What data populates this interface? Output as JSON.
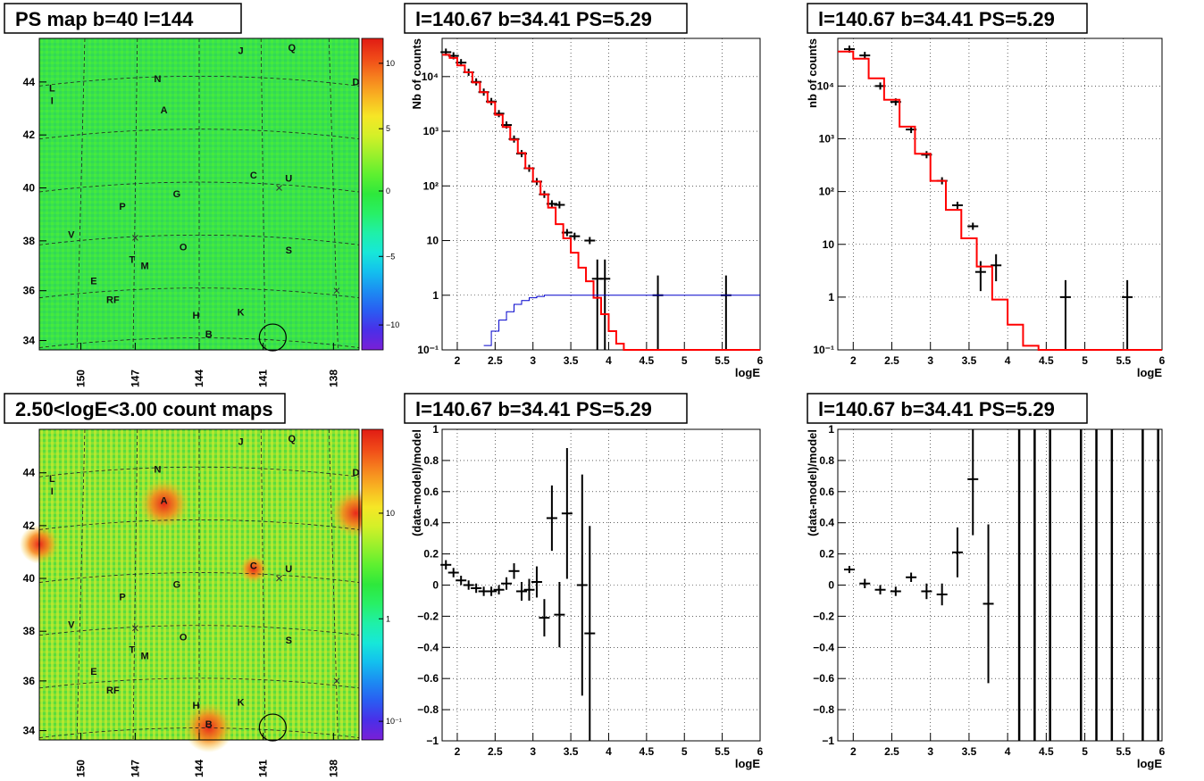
{
  "colors": {
    "data_marker": "#000000",
    "model_line": "#ff0000",
    "aux_line": "#0000cc",
    "grid": "#000000",
    "palette": [
      "#7a1fd6",
      "#4a2fe8",
      "#2a5cf2",
      "#1c8cf2",
      "#13bfee",
      "#17e8d8",
      "#1ff0a8",
      "#28f066",
      "#2ee83c",
      "#5ef030",
      "#9af02c",
      "#d4f028",
      "#f6e626",
      "#f8b422",
      "#f6801e",
      "#f04818",
      "#e01c14"
    ]
  },
  "maps": [
    {
      "title": "PS map b=40 l=144",
      "x_ticks": [
        "150",
        "147",
        "144",
        "141",
        "138"
      ],
      "y_ticks": [
        "44",
        "42",
        "40",
        "38",
        "36",
        "34"
      ],
      "palette_ticks": [
        "10",
        "5",
        "0",
        "−5",
        "−10"
      ],
      "background": "#3ae34a",
      "labels": [
        "J",
        "Q",
        "N",
        "D",
        "L",
        "I",
        "A",
        "C",
        "U",
        "G",
        "P",
        "V",
        "O",
        "S",
        "T",
        "M",
        "E",
        "RF",
        "H",
        "K",
        "B"
      ]
    },
    {
      "title": "2.50<logE<3.00 count maps",
      "x_ticks": [
        "150",
        "147",
        "144",
        "141",
        "138"
      ],
      "y_ticks": [
        "44",
        "42",
        "40",
        "38",
        "36",
        "34"
      ],
      "palette_ticks": [
        "10",
        "1",
        "10⁻¹"
      ],
      "background": "#7fe238",
      "labels": [
        "J",
        "Q",
        "N",
        "D",
        "L",
        "I",
        "A",
        "C",
        "U",
        "G",
        "P",
        "V",
        "O",
        "S",
        "T",
        "M",
        "E",
        "RF",
        "H",
        "K",
        "B"
      ]
    }
  ],
  "chart_data": [
    {
      "type": "line",
      "title": "l=140.67 b=34.41 PS=5.29",
      "xlabel": "logE",
      "ylabel": "Nb of counts",
      "xlim": [
        1.8,
        6
      ],
      "ylim": [
        0.1,
        50000
      ],
      "yscale": "log",
      "x_ticks": [
        "2",
        "2.5",
        "3",
        "3.5",
        "4",
        "4.5",
        "5",
        "5.5",
        "6"
      ],
      "y_ticks": [
        "10⁻¹",
        "1",
        "10",
        "10²",
        "10³",
        "10⁴"
      ],
      "grid": true,
      "series": [
        {
          "role": "data",
          "x": [
            1.85,
            1.95,
            2.05,
            2.15,
            2.25,
            2.35,
            2.45,
            2.55,
            2.65,
            2.75,
            2.85,
            2.95,
            3.05,
            3.15,
            3.25,
            3.35,
            3.45,
            3.55,
            3.75,
            3.85,
            3.95,
            4.65,
            5.55
          ],
          "y": [
            28000,
            24000,
            18000,
            12000,
            8000,
            5200,
            3500,
            2100,
            1300,
            720,
            390,
            210,
            120,
            70,
            47,
            45,
            14,
            12,
            10,
            2,
            2,
            1,
            1
          ],
          "yerr_lo": [
            0,
            0,
            0,
            0,
            0,
            0,
            0,
            0,
            0,
            0,
            0,
            0,
            0,
            0,
            0,
            0,
            0,
            0,
            0,
            1.9,
            1.9,
            0.9,
            0.9
          ],
          "yerr_hi": [
            0,
            0,
            0,
            0,
            0,
            0,
            0,
            0,
            0,
            0,
            0,
            0,
            0,
            0,
            0,
            0,
            0,
            0,
            0,
            2.5,
            2.5,
            1.3,
            1.3
          ]
        },
        {
          "role": "model",
          "x": [
            1.8,
            1.9,
            2.0,
            2.1,
            2.2,
            2.3,
            2.4,
            2.5,
            2.6,
            2.7,
            2.8,
            2.9,
            3.0,
            3.1,
            3.2,
            3.3,
            3.4,
            3.5,
            3.6,
            3.7,
            3.8,
            3.9,
            4.0,
            4.1,
            4.2,
            6.0
          ],
          "y": [
            25000,
            22000,
            16000,
            12000,
            7800,
            5200,
            3400,
            2000,
            1200,
            700,
            400,
            210,
            120,
            70,
            40,
            20,
            11,
            6,
            3.2,
            1.8,
            0.9,
            0.45,
            0.22,
            0.13,
            0.1,
            0.1
          ]
        },
        {
          "role": "aux",
          "x": [
            2.35,
            2.45,
            2.55,
            2.65,
            2.75,
            2.85,
            2.95,
            3.05,
            3.15,
            6.0
          ],
          "y": [
            0.12,
            0.22,
            0.35,
            0.5,
            0.68,
            0.8,
            0.9,
            0.95,
            1.0,
            1.0
          ]
        }
      ]
    },
    {
      "type": "line",
      "title": "l=140.67 b=34.41 PS=5.29",
      "xlabel": "logE",
      "ylabel": "nb of counts",
      "xlim": [
        1.8,
        6
      ],
      "ylim": [
        0.1,
        80000
      ],
      "yscale": "log",
      "x_ticks": [
        "2",
        "2.5",
        "3",
        "3.5",
        "4",
        "4.5",
        "5",
        "5.5",
        "6"
      ],
      "y_ticks": [
        "10⁻¹",
        "1",
        "10",
        "10²",
        "10³",
        "10⁴"
      ],
      "grid": true,
      "series": [
        {
          "role": "data",
          "x": [
            1.95,
            2.15,
            2.35,
            2.55,
            2.75,
            2.95,
            3.15,
            3.35,
            3.55,
            3.65,
            3.85,
            4.75,
            5.55
          ],
          "y": [
            50000,
            38000,
            10000,
            5000,
            1500,
            500,
            160,
            55,
            22,
            3,
            4,
            1,
            1
          ],
          "yerr_lo": [
            0,
            0,
            0,
            0,
            0,
            0,
            0,
            0,
            0,
            1.7,
            2,
            0.9,
            0.9
          ],
          "yerr_hi": [
            0,
            0,
            0,
            0,
            0,
            0,
            0,
            0,
            0,
            1.8,
            2.5,
            1.1,
            1.1
          ]
        },
        {
          "role": "model",
          "x": [
            1.8,
            2.0,
            2.2,
            2.4,
            2.6,
            2.8,
            3.0,
            3.2,
            3.4,
            3.6,
            3.8,
            4.0,
            4.2,
            4.4,
            6.0
          ],
          "y": [
            45000,
            33000,
            14000,
            5500,
            1700,
            520,
            160,
            45,
            13,
            3.8,
            0.9,
            0.3,
            0.12,
            0.1,
            0.1
          ]
        }
      ]
    },
    {
      "type": "scatter",
      "title": "l=140.67 b=34.41 PS=5.29",
      "xlabel": "logE",
      "ylabel": "(data-model)/model",
      "xlim": [
        1.8,
        6
      ],
      "ylim": [
        -1,
        1
      ],
      "x_ticks": [
        "2",
        "2.5",
        "3",
        "3.5",
        "4",
        "4.5",
        "5",
        "5.5",
        "6"
      ],
      "y_ticks": [
        "−1",
        "−0.8",
        "−0.6",
        "−0.4",
        "−0.2",
        "0",
        "0.2",
        "0.4",
        "0.6",
        "0.8",
        "1"
      ],
      "grid": true,
      "series": [
        {
          "role": "data",
          "x": [
            1.85,
            1.95,
            2.05,
            2.15,
            2.25,
            2.35,
            2.45,
            2.55,
            2.65,
            2.75,
            2.85,
            2.95,
            3.05,
            3.15,
            3.25,
            3.35,
            3.45,
            3.65,
            3.75
          ],
          "y": [
            0.13,
            0.08,
            0.03,
            0.0,
            -0.02,
            -0.04,
            -0.04,
            -0.03,
            0.01,
            0.09,
            -0.04,
            -0.03,
            0.02,
            -0.21,
            0.43,
            -0.19,
            0.46,
            0.0,
            -0.31
          ],
          "err": [
            0.03,
            0.03,
            0.03,
            0.03,
            0.03,
            0.03,
            0.03,
            0.03,
            0.04,
            0.05,
            0.06,
            0.07,
            0.1,
            0.12,
            0.21,
            0.21,
            0.42,
            0.71,
            0.69
          ]
        }
      ]
    },
    {
      "type": "scatter",
      "title": "l=140.67 b=34.41 PS=5.29",
      "xlabel": "logE",
      "ylabel": "(data-model)/model",
      "xlim": [
        1.8,
        6
      ],
      "ylim": [
        -1,
        1
      ],
      "x_ticks": [
        "2",
        "2.5",
        "3",
        "3.5",
        "4",
        "4.5",
        "5",
        "5.5",
        "6"
      ],
      "y_ticks": [
        "−1",
        "−0.8",
        "−0.6",
        "−0.4",
        "−0.2",
        "0",
        "0.2",
        "0.4",
        "0.6",
        "0.8",
        "1"
      ],
      "grid": true,
      "series": [
        {
          "role": "data",
          "x": [
            1.95,
            2.15,
            2.35,
            2.55,
            2.75,
            2.95,
            3.15,
            3.35,
            3.55,
            3.75
          ],
          "y": [
            0.1,
            0.01,
            -0.03,
            -0.04,
            0.05,
            -0.04,
            -0.06,
            0.21,
            0.68,
            -0.12
          ],
          "err": [
            0.02,
            0.03,
            0.03,
            0.03,
            0.03,
            0.05,
            0.07,
            0.16,
            0.36,
            0.51
          ]
        },
        {
          "role": "overflow",
          "x": [
            4.15,
            4.35,
            4.55,
            4.95,
            5.15,
            5.35,
            5.75,
            5.95
          ]
        }
      ]
    }
  ]
}
